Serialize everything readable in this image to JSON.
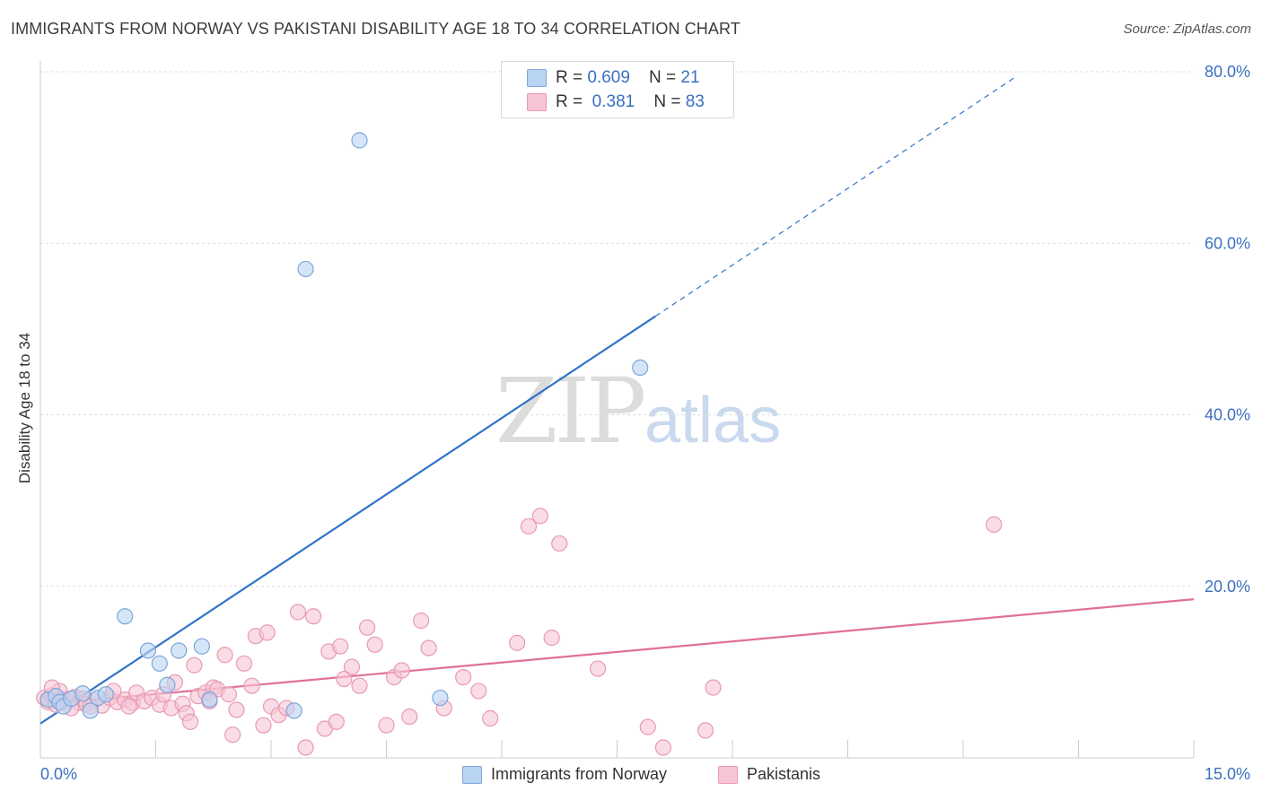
{
  "title": "IMMIGRANTS FROM NORWAY VS PAKISTANI DISABILITY AGE 18 TO 34 CORRELATION CHART",
  "source": "Source: ZipAtlas.com",
  "watermark": {
    "part1": "ZIP",
    "part2": "atlas"
  },
  "legend_top": {
    "rows": [
      {
        "r_label": "R = ",
        "r_value": "0.609",
        "n_label": "N = ",
        "n_value": "21"
      },
      {
        "r_label": "R = ",
        "r_value": "0.381",
        "n_label": "N = ",
        "n_value": "83"
      }
    ]
  },
  "colors": {
    "norway_fill": "#b9d3f3",
    "norway_stroke": "#7ea6d8",
    "norway_line": "#2f74c8",
    "pakistani_fill": "#f7c4d3",
    "pakistani_stroke": "#e89ab3",
    "pakistani_line": "#e0709a",
    "axis_label": "#3a6fbf",
    "grid": "#dddddd"
  },
  "chart_data": {
    "type": "scatter",
    "title": "IMMIGRANTS FROM NORWAY VS PAKISTANI DISABILITY AGE 18 TO 34 CORRELATION CHART",
    "xlabel": "",
    "ylabel": "Disability Age 18 to 34",
    "xlim": [
      0,
      15
    ],
    "ylim": [
      0,
      80
    ],
    "x_tick_labels": [
      "0.0%",
      "15.0%"
    ],
    "y_ticks": [
      20,
      40,
      60,
      80
    ],
    "y_tick_labels": [
      "20.0%",
      "40.0%",
      "60.0%",
      "80.0%"
    ],
    "grid": true,
    "legend_position": "bottom",
    "series": [
      {
        "name": "Immigrants from Norway",
        "color": "#b9d3f3",
        "points": [
          [
            0.1,
            6.8
          ],
          [
            0.2,
            7.2
          ],
          [
            0.25,
            6.5
          ],
          [
            0.3,
            6.0
          ],
          [
            0.4,
            6.9
          ],
          [
            0.55,
            7.5
          ],
          [
            0.65,
            5.5
          ],
          [
            0.75,
            7.0
          ],
          [
            0.85,
            7.4
          ],
          [
            1.1,
            16.5
          ],
          [
            1.4,
            12.5
          ],
          [
            1.55,
            11.0
          ],
          [
            1.65,
            8.5
          ],
          [
            1.8,
            12.5
          ],
          [
            2.1,
            13.0
          ],
          [
            2.2,
            6.8
          ],
          [
            3.3,
            5.5
          ],
          [
            3.45,
            57.0
          ],
          [
            4.15,
            72.0
          ],
          [
            5.2,
            7.0
          ],
          [
            7.8,
            45.5
          ]
        ],
        "trend": {
          "x0": 0.0,
          "y0": 4.0,
          "x1": 8.0,
          "y1": 51.5,
          "dashed_to_x": 12.7,
          "dashed_to_y": 79.5
        }
      },
      {
        "name": "Pakistanis",
        "color": "#f7c4d3",
        "points": [
          [
            0.05,
            7.0
          ],
          [
            0.1,
            6.5
          ],
          [
            0.15,
            7.3
          ],
          [
            0.2,
            6.2
          ],
          [
            0.25,
            7.8
          ],
          [
            0.3,
            6.8
          ],
          [
            0.35,
            6.6
          ],
          [
            0.45,
            7.1
          ],
          [
            0.5,
            6.4
          ],
          [
            0.55,
            6.9
          ],
          [
            0.6,
            6.3
          ],
          [
            0.7,
            6.7
          ],
          [
            0.8,
            6.1
          ],
          [
            0.9,
            7.0
          ],
          [
            1.0,
            6.5
          ],
          [
            1.1,
            6.8
          ],
          [
            1.2,
            6.4
          ],
          [
            1.25,
            7.6
          ],
          [
            1.35,
            6.6
          ],
          [
            1.45,
            7.0
          ],
          [
            1.55,
            6.2
          ],
          [
            1.6,
            7.4
          ],
          [
            1.7,
            5.8
          ],
          [
            1.75,
            8.8
          ],
          [
            1.85,
            6.3
          ],
          [
            1.9,
            5.2
          ],
          [
            1.95,
            4.2
          ],
          [
            2.0,
            10.8
          ],
          [
            2.05,
            7.2
          ],
          [
            2.15,
            7.6
          ],
          [
            2.2,
            6.6
          ],
          [
            2.25,
            8.2
          ],
          [
            2.3,
            8.0
          ],
          [
            2.4,
            12.0
          ],
          [
            2.45,
            7.4
          ],
          [
            2.5,
            2.7
          ],
          [
            2.55,
            5.6
          ],
          [
            2.65,
            11.0
          ],
          [
            2.75,
            8.4
          ],
          [
            2.8,
            14.2
          ],
          [
            2.9,
            3.8
          ],
          [
            2.95,
            14.6
          ],
          [
            3.0,
            6.0
          ],
          [
            3.1,
            5.0
          ],
          [
            3.2,
            5.8
          ],
          [
            3.35,
            17.0
          ],
          [
            3.45,
            1.2
          ],
          [
            3.55,
            16.5
          ],
          [
            3.7,
            3.4
          ],
          [
            3.75,
            12.4
          ],
          [
            3.85,
            4.2
          ],
          [
            3.9,
            13.0
          ],
          [
            3.95,
            9.2
          ],
          [
            4.05,
            10.6
          ],
          [
            4.15,
            8.4
          ],
          [
            4.25,
            15.2
          ],
          [
            4.35,
            13.2
          ],
          [
            4.5,
            3.8
          ],
          [
            4.6,
            9.4
          ],
          [
            4.7,
            10.2
          ],
          [
            4.8,
            4.8
          ],
          [
            4.95,
            16.0
          ],
          [
            5.05,
            12.8
          ],
          [
            5.25,
            5.8
          ],
          [
            5.5,
            9.4
          ],
          [
            5.7,
            7.8
          ],
          [
            5.85,
            4.6
          ],
          [
            6.2,
            13.4
          ],
          [
            6.35,
            27.0
          ],
          [
            6.5,
            28.2
          ],
          [
            6.65,
            14.0
          ],
          [
            6.75,
            25.0
          ],
          [
            7.25,
            10.4
          ],
          [
            7.9,
            3.6
          ],
          [
            8.1,
            1.2
          ],
          [
            8.65,
            3.2
          ],
          [
            8.75,
            8.2
          ],
          [
            12.4,
            27.2
          ],
          [
            0.15,
            8.2
          ],
          [
            0.4,
            5.8
          ],
          [
            0.65,
            6.0
          ],
          [
            0.95,
            7.8
          ],
          [
            1.15,
            6.0
          ]
        ],
        "trend": {
          "x0": 0.0,
          "y0": 6.2,
          "x1": 15.0,
          "y1": 18.5
        }
      }
    ]
  }
}
